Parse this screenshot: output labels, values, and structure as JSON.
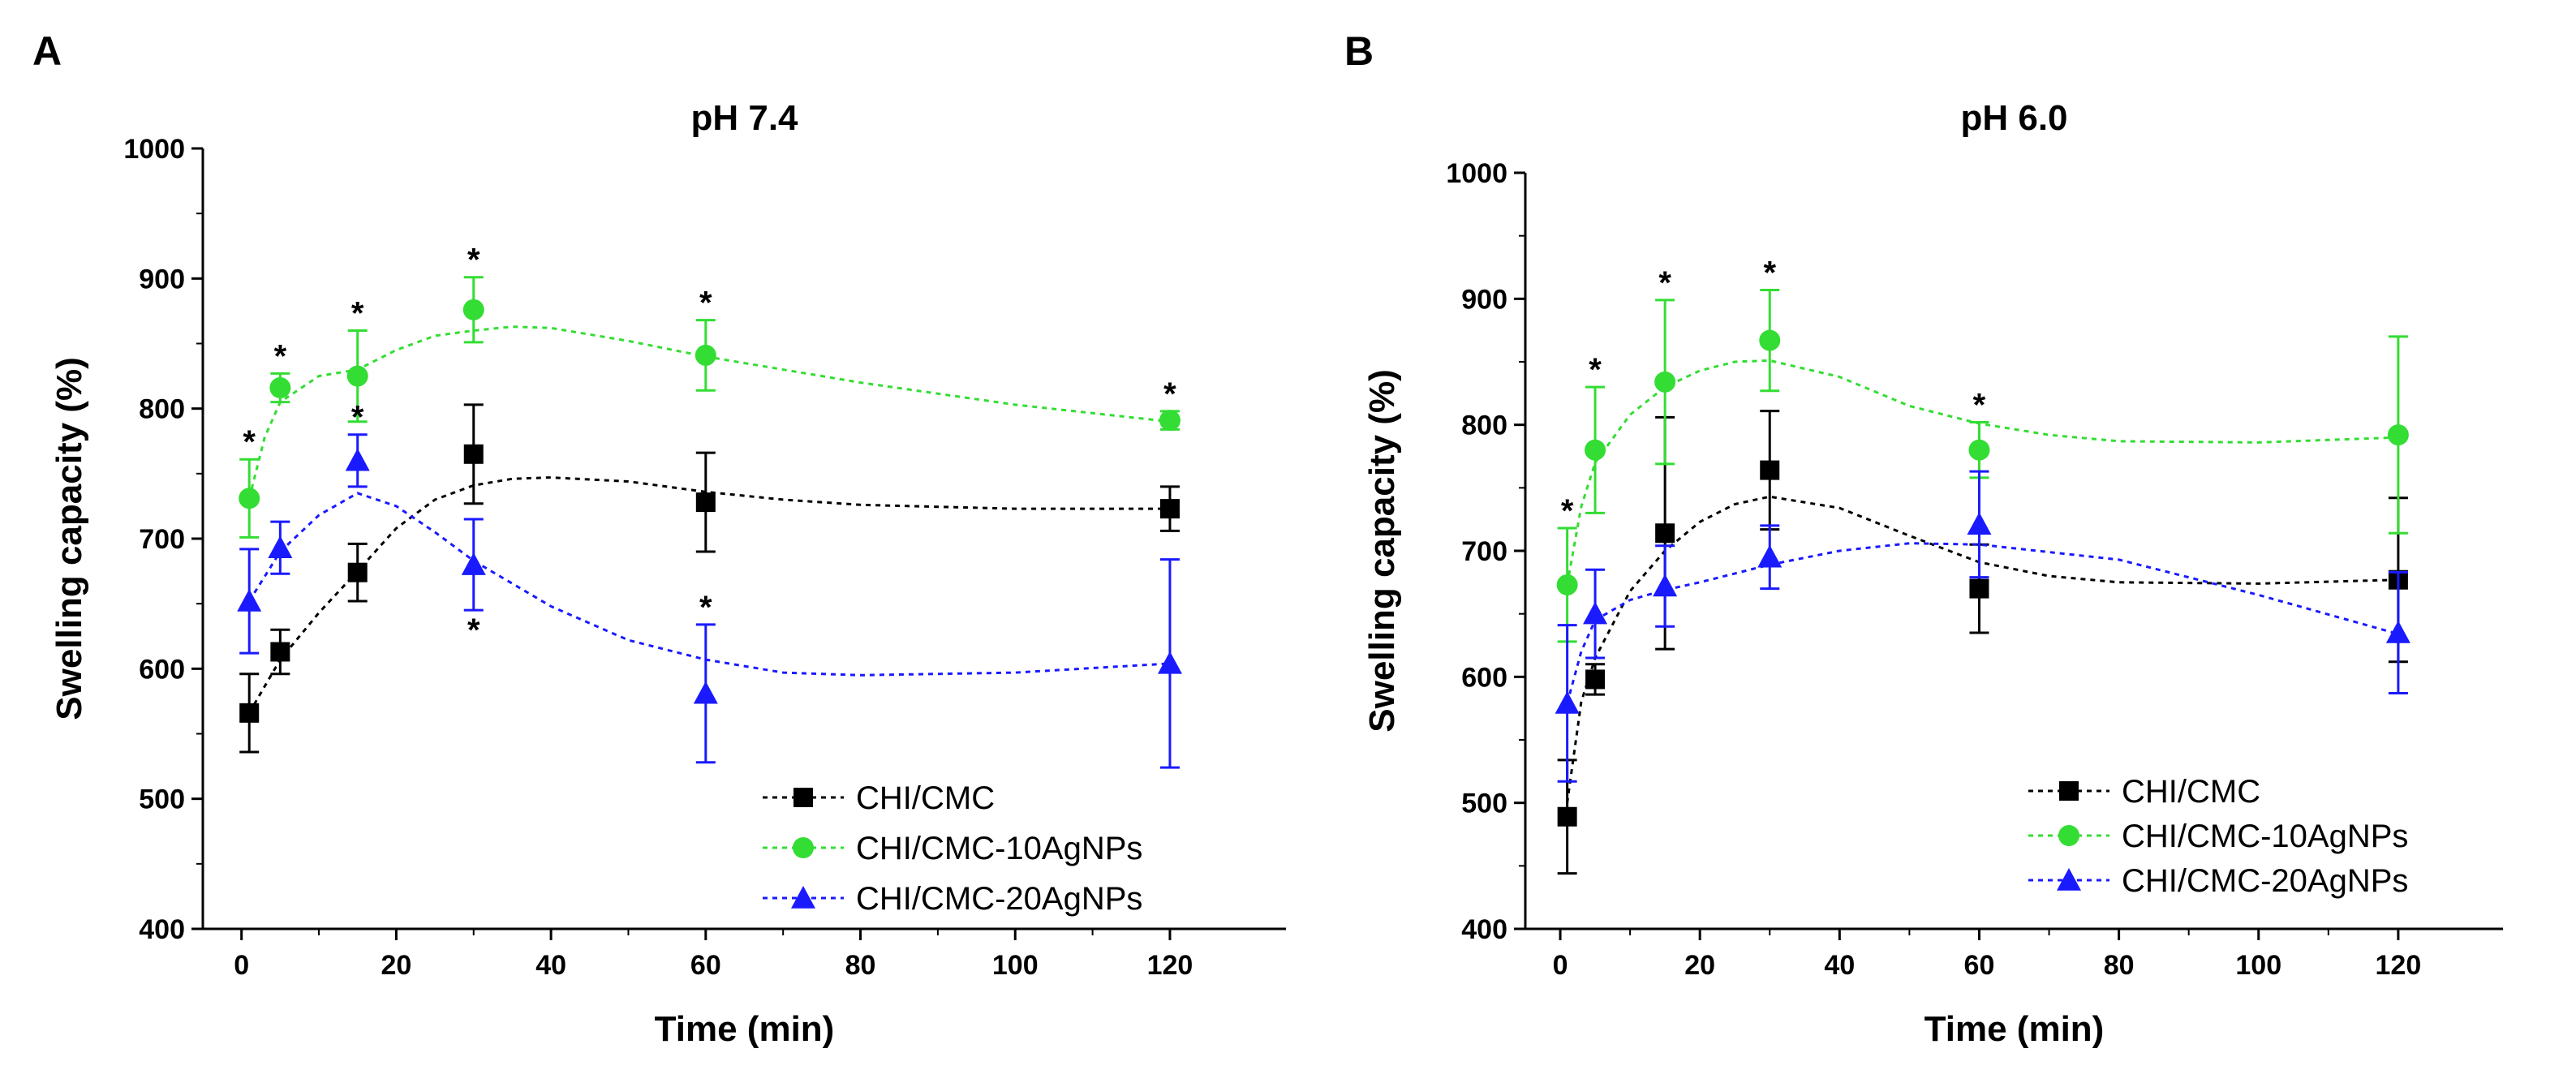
{
  "chart_data": [
    {
      "panel": "A",
      "type": "scatter",
      "title": "pH 7.4",
      "xlabel": "Time (min)",
      "ylabel": "Swelling capacity (%)",
      "xlim": [
        -5,
        135
      ],
      "ylim": [
        400,
        1000
      ],
      "xticks": [
        0,
        20,
        40,
        60,
        80,
        100,
        120
      ],
      "yticks": [
        400,
        500,
        600,
        700,
        800,
        900,
        1000
      ],
      "legend_position": "bottom-right",
      "series": [
        {
          "name": "CHI/CMC",
          "color": "#000000",
          "marker": "square",
          "x": [
            1,
            5,
            15,
            30,
            60,
            120
          ],
          "y": [
            566,
            613,
            674,
            765,
            728,
            723
          ],
          "err": [
            30,
            17,
            22,
            38,
            38,
            17
          ],
          "fit": [
            [
              1,
              566
            ],
            [
              5,
              607
            ],
            [
              10,
              643
            ],
            [
              15,
              675
            ],
            [
              20,
              708
            ],
            [
              25,
              730
            ],
            [
              30,
              741
            ],
            [
              35,
              746
            ],
            [
              40,
              747
            ],
            [
              50,
              744
            ],
            [
              60,
              736
            ],
            [
              70,
              730
            ],
            [
              80,
              726
            ],
            [
              100,
              723
            ],
            [
              120,
              723
            ]
          ],
          "stars": [],
          "star_below": []
        },
        {
          "name": "CHI/CMC-10AgNPs",
          "color": "#33dd33",
          "marker": "circle",
          "x": [
            1,
            5,
            15,
            30,
            60,
            120
          ],
          "y": [
            731,
            816,
            825,
            876,
            841,
            791
          ],
          "err": [
            30,
            11,
            35,
            25,
            27,
            7
          ],
          "fit": [
            [
              1,
              731
            ],
            [
              3,
              778
            ],
            [
              5,
              805
            ],
            [
              10,
              825
            ],
            [
              15,
              830
            ],
            [
              20,
              845
            ],
            [
              25,
              856
            ],
            [
              30,
              860
            ],
            [
              35,
              863
            ],
            [
              40,
              862
            ],
            [
              50,
              852
            ],
            [
              60,
              840
            ],
            [
              80,
              820
            ],
            [
              100,
              803
            ],
            [
              120,
              790
            ]
          ],
          "stars": [
            1,
            5,
            15,
            30,
            60,
            120
          ],
          "star_below": []
        },
        {
          "name": "CHI/CMC-20AgNPs",
          "color": "#1a1aff",
          "marker": "triangle",
          "x": [
            1,
            5,
            15,
            30,
            60,
            120
          ],
          "y": [
            652,
            693,
            760,
            680,
            581,
            604
          ],
          "err": [
            40,
            20,
            20,
            35,
            53,
            80
          ],
          "fit": [
            [
              1,
              652
            ],
            [
              5,
              690
            ],
            [
              10,
              718
            ],
            [
              15,
              735
            ],
            [
              20,
              725
            ],
            [
              25,
              705
            ],
            [
              30,
              683
            ],
            [
              40,
              648
            ],
            [
              50,
              622
            ],
            [
              60,
              607
            ],
            [
              70,
              597
            ],
            [
              80,
              595
            ],
            [
              100,
              597
            ],
            [
              120,
              604
            ]
          ],
          "stars": [
            15,
            60
          ],
          "star_below": [
            30
          ]
        }
      ]
    },
    {
      "panel": "B",
      "type": "scatter",
      "title": "pH 6.0",
      "xlabel": "Time (min)",
      "ylabel": "Swelling capacity (%)",
      "xlim": [
        -5,
        135
      ],
      "ylim": [
        400,
        1000
      ],
      "xticks": [
        0,
        20,
        40,
        60,
        80,
        100,
        120
      ],
      "yticks": [
        400,
        500,
        600,
        700,
        800,
        900,
        1000
      ],
      "legend_position": "bottom-right",
      "series": [
        {
          "name": "CHI/CMC",
          "color": "#000000",
          "marker": "square",
          "x": [
            1,
            5,
            15,
            30,
            60,
            120
          ],
          "y": [
            489,
            598,
            714,
            764,
            670,
            677
          ],
          "err": [
            45,
            12,
            92,
            47,
            35,
            65
          ],
          "fit": [
            [
              1,
              500
            ],
            [
              3,
              580
            ],
            [
              5,
              615
            ],
            [
              10,
              668
            ],
            [
              15,
              700
            ],
            [
              20,
              723
            ],
            [
              25,
              737
            ],
            [
              30,
              743
            ],
            [
              40,
              734
            ],
            [
              50,
              712
            ],
            [
              60,
              691
            ],
            [
              70,
              680
            ],
            [
              80,
              675
            ],
            [
              100,
              674
            ],
            [
              120,
              677
            ]
          ],
          "stars": [],
          "star_below": []
        },
        {
          "name": "CHI/CMC-10AgNPs",
          "color": "#33dd33",
          "marker": "circle",
          "x": [
            1,
            5,
            15,
            30,
            60,
            120
          ],
          "y": [
            673,
            780,
            834,
            867,
            780,
            792
          ],
          "err": [
            45,
            50,
            65,
            40,
            22,
            78
          ],
          "fit": [
            [
              1,
              673
            ],
            [
              3,
              735
            ],
            [
              5,
              770
            ],
            [
              10,
              808
            ],
            [
              15,
              830
            ],
            [
              20,
              843
            ],
            [
              25,
              850
            ],
            [
              30,
              851
            ],
            [
              40,
              838
            ],
            [
              50,
              815
            ],
            [
              60,
              801
            ],
            [
              70,
              792
            ],
            [
              80,
              787
            ],
            [
              100,
              786
            ],
            [
              120,
              790
            ]
          ],
          "stars": [
            1,
            5,
            15,
            30,
            60
          ],
          "star_below": []
        },
        {
          "name": "CHI/CMC-20AgNPs",
          "color": "#1a1aff",
          "marker": "triangle",
          "x": [
            1,
            5,
            15,
            30,
            60,
            120
          ],
          "y": [
            579,
            650,
            672,
            695,
            721,
            635
          ],
          "err": [
            62,
            35,
            32,
            25,
            42,
            48
          ],
          "fit": [
            [
              1,
              579
            ],
            [
              3,
              620
            ],
            [
              5,
              645
            ],
            [
              10,
              661
            ],
            [
              15,
              669
            ],
            [
              20,
              675
            ],
            [
              30,
              689
            ],
            [
              40,
              700
            ],
            [
              50,
              706
            ],
            [
              60,
              705
            ],
            [
              80,
              693
            ],
            [
              100,
              665
            ],
            [
              120,
              634
            ]
          ],
          "stars": [],
          "star_below": []
        }
      ]
    }
  ]
}
